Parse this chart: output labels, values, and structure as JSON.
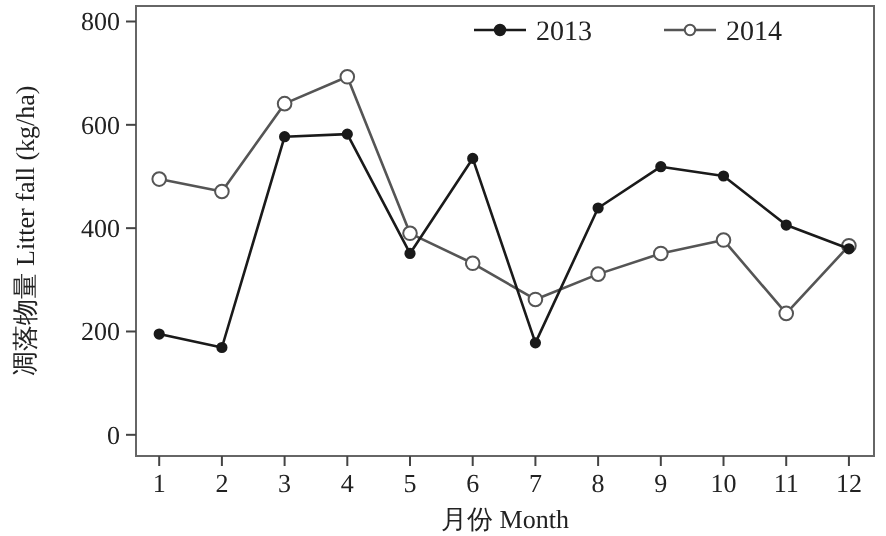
{
  "chart_data": {
    "type": "line",
    "xlabel": "月份 Month",
    "ylabel": "凋落物量 Litter fall (kg/ha)",
    "x": [
      1,
      2,
      3,
      4,
      5,
      6,
      7,
      8,
      9,
      10,
      11,
      12
    ],
    "series": [
      {
        "name": "2013",
        "color": "#1a1a1a",
        "values": [
          195,
          169,
          577,
          582,
          351,
          535,
          178,
          439,
          519,
          501,
          406,
          360
        ]
      },
      {
        "name": "2014",
        "color": "#555555",
        "values": [
          495,
          471,
          641,
          693,
          390,
          332,
          262,
          311,
          351,
          377,
          235,
          366
        ]
      }
    ],
    "xlim": [
      0.63,
      12.4
    ],
    "xticks": [
      1,
      2,
      3,
      4,
      5,
      6,
      7,
      8,
      9,
      10,
      11,
      12
    ],
    "ylim": [
      -41,
      830
    ],
    "yticks": [
      0,
      200,
      400,
      600,
      800
    ],
    "grid": false,
    "legend": "top right",
    "marker": "circle",
    "line_style": "solid"
  }
}
